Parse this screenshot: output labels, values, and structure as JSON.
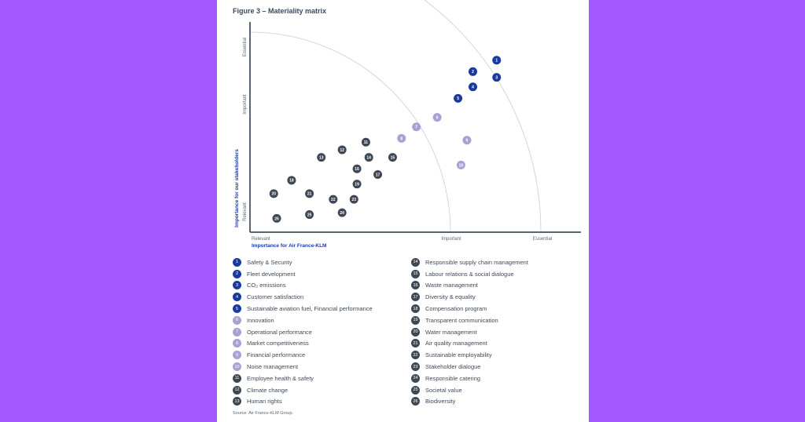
{
  "figure_title": "Figure 3 – Materiality matrix",
  "source": "Source: Air France-KLM Group.",
  "colors": {
    "background": "#a357ff",
    "group_dark_blue": "#1a3a9e",
    "group_light_purple": "#a6a3d4",
    "group_slate": "#3d4854",
    "axis": "#5a6473"
  },
  "chart_data": {
    "type": "scatter",
    "xlabel": "Importance for Air France-KLM",
    "ylabel": "Importance for our stakeholders",
    "x_ticks": [
      "Relevant",
      "Important",
      "Essential"
    ],
    "y_ticks": [
      "Relevant",
      "Important",
      "Essential"
    ],
    "xlim": [
      0,
      10
    ],
    "ylim": [
      0,
      10
    ],
    "grid": false,
    "points": [
      {
        "id": "1",
        "group": 1,
        "x": 8.3,
        "y": 8.9
      },
      {
        "id": "2",
        "group": 1,
        "x": 7.5,
        "y": 8.3
      },
      {
        "id": "3",
        "group": 1,
        "x": 8.3,
        "y": 8.0
      },
      {
        "id": "4",
        "group": 1,
        "x": 7.5,
        "y": 7.5
      },
      {
        "id": "5",
        "group": 1,
        "x": 7.0,
        "y": 6.9
      },
      {
        "id": "6",
        "group": 2,
        "x": 6.3,
        "y": 5.9
      },
      {
        "id": "7",
        "group": 2,
        "x": 5.6,
        "y": 5.4
      },
      {
        "id": "8",
        "group": 2,
        "x": 5.1,
        "y": 4.8
      },
      {
        "id": "9",
        "group": 2,
        "x": 7.3,
        "y": 4.7
      },
      {
        "id": "10",
        "group": 2,
        "x": 7.1,
        "y": 3.4
      },
      {
        "id": "11",
        "group": 3,
        "x": 3.9,
        "y": 4.6
      },
      {
        "id": "12",
        "group": 3,
        "x": 3.1,
        "y": 4.2
      },
      {
        "id": "13",
        "group": 3,
        "x": 2.4,
        "y": 3.8
      },
      {
        "id": "14",
        "group": 3,
        "x": 4.0,
        "y": 3.8
      },
      {
        "id": "15",
        "group": 3,
        "x": 4.8,
        "y": 3.8
      },
      {
        "id": "16",
        "group": 3,
        "x": 3.6,
        "y": 3.2
      },
      {
        "id": "17",
        "group": 3,
        "x": 4.3,
        "y": 2.9
      },
      {
        "id": "18",
        "group": 3,
        "x": 1.4,
        "y": 2.6
      },
      {
        "id": "19",
        "group": 3,
        "x": 3.6,
        "y": 2.4
      },
      {
        "id": "20",
        "group": 3,
        "x": 0.8,
        "y": 1.9
      },
      {
        "id": "21",
        "group": 3,
        "x": 2.0,
        "y": 1.9
      },
      {
        "id": "22",
        "group": 3,
        "x": 2.8,
        "y": 1.6
      },
      {
        "id": "23",
        "group": 3,
        "x": 3.5,
        "y": 1.6
      },
      {
        "id": "24",
        "group": 3,
        "x": 3.1,
        "y": 0.9
      },
      {
        "id": "25",
        "group": 3,
        "x": 2.0,
        "y": 0.8
      },
      {
        "id": "26",
        "group": 3,
        "x": 0.9,
        "y": 0.6
      }
    ]
  },
  "legend": [
    {
      "id": "1",
      "group": 1,
      "label": "Safety & Security"
    },
    {
      "id": "2",
      "group": 1,
      "label": "Fleet development"
    },
    {
      "id": "3",
      "group": 1,
      "label": "CO₂ emissions"
    },
    {
      "id": "4",
      "group": 1,
      "label": "Customer satisfaction"
    },
    {
      "id": "5",
      "group": 1,
      "label": "Sustainable aviation fuel, Financial performance"
    },
    {
      "id": "6",
      "group": 2,
      "label": "Innovation"
    },
    {
      "id": "7",
      "group": 2,
      "label": "Operational performance"
    },
    {
      "id": "8",
      "group": 2,
      "label": "Market competitiveness"
    },
    {
      "id": "9",
      "group": 2,
      "label": "Financial performance"
    },
    {
      "id": "10",
      "group": 2,
      "label": "Noise management"
    },
    {
      "id": "11",
      "group": 3,
      "label": "Employee health & safety"
    },
    {
      "id": "12",
      "group": 3,
      "label": "Climate change"
    },
    {
      "id": "13",
      "group": 3,
      "label": "Human rights"
    },
    {
      "id": "14",
      "group": 3,
      "label": "Responsible supply chain management"
    },
    {
      "id": "15",
      "group": 3,
      "label": "Labour relations & social dialogue"
    },
    {
      "id": "16",
      "group": 3,
      "label": "Waste management"
    },
    {
      "id": "17",
      "group": 3,
      "label": "Diversity & equality"
    },
    {
      "id": "18",
      "group": 3,
      "label": "Compensation program"
    },
    {
      "id": "19",
      "group": 3,
      "label": "Transparent communication"
    },
    {
      "id": "20",
      "group": 3,
      "label": "Water management"
    },
    {
      "id": "21",
      "group": 3,
      "label": "Air quality management"
    },
    {
      "id": "22",
      "group": 3,
      "label": "Sustainable employability"
    },
    {
      "id": "23",
      "group": 3,
      "label": "Stakeholder dialogue"
    },
    {
      "id": "24",
      "group": 3,
      "label": "Responsible catering"
    },
    {
      "id": "25",
      "group": 3,
      "label": "Societal value"
    },
    {
      "id": "26",
      "group": 3,
      "label": "Biodiversity"
    }
  ]
}
